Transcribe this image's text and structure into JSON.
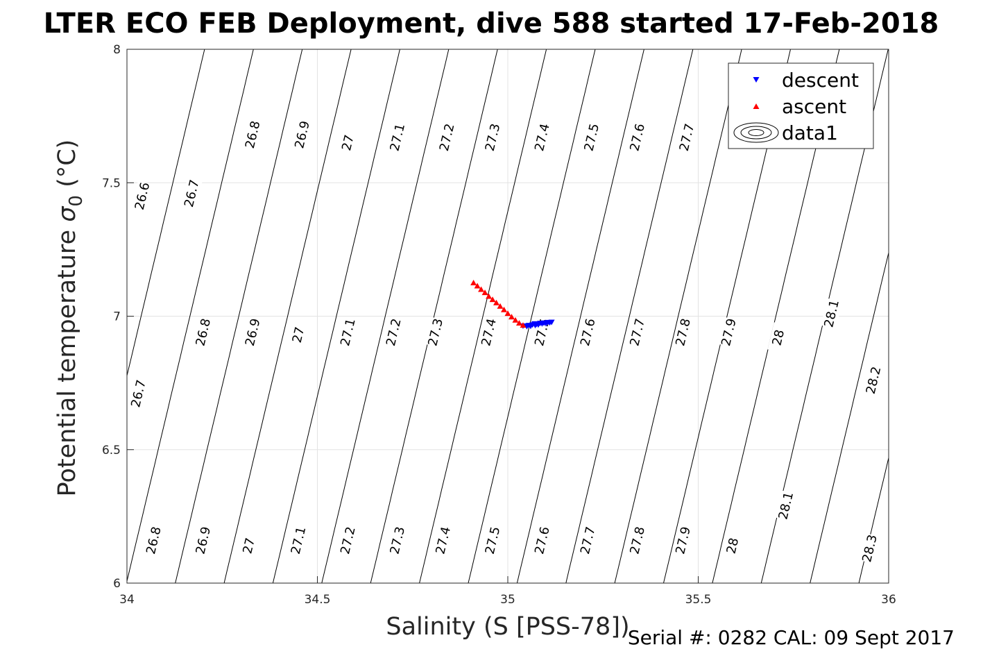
{
  "chart_data": {
    "type": "scatter",
    "title": "LTER ECO FEB Deployment, dive 588 started 17-Feb-2018",
    "xlabel": "Salinity (S [PSS-78])",
    "ylabel_main": "Potential temperature ",
    "ylabel_symbol": "σ",
    "ylabel_sub": "0",
    "ylabel_unit": " (°C)",
    "footer": "Serial #: 0282  CAL: 09 Sept 2017",
    "xlim": [
      34,
      36
    ],
    "ylim": [
      6,
      8
    ],
    "xticks": [
      "34",
      "34.5",
      "35",
      "35.5",
      "36"
    ],
    "yticks": [
      "6",
      "6.5",
      "7",
      "7.5",
      "8"
    ],
    "grid": true,
    "legend_position": "top-right",
    "legend": [
      "descent",
      "ascent",
      "data1"
    ],
    "contour_levels": [
      26.6,
      26.7,
      26.8,
      26.9,
      27.0,
      27.1,
      27.2,
      27.3,
      27.4,
      27.5,
      27.6,
      27.7,
      27.8,
      27.9,
      28.0,
      28.1,
      28.2,
      28.3
    ],
    "contour_labels": [
      {
        "text": "26.6",
        "s": 34.04,
        "t": 7.45
      },
      {
        "text": "26.7",
        "s": 34.17,
        "t": 7.46
      },
      {
        "text": "26.8",
        "s": 34.33,
        "t": 7.68
      },
      {
        "text": "26.9",
        "s": 34.46,
        "t": 7.68
      },
      {
        "text": "27",
        "s": 34.58,
        "t": 7.65
      },
      {
        "text": "27.1",
        "s": 34.71,
        "t": 7.67
      },
      {
        "text": "27.2",
        "s": 34.84,
        "t": 7.67
      },
      {
        "text": "27.3",
        "s": 34.96,
        "t": 7.67
      },
      {
        "text": "27.4",
        "s": 35.09,
        "t": 7.67
      },
      {
        "text": "27.5",
        "s": 35.22,
        "t": 7.67
      },
      {
        "text": "27.6",
        "s": 35.34,
        "t": 7.67
      },
      {
        "text": "27.7",
        "s": 35.47,
        "t": 7.67
      },
      {
        "text": "26.7",
        "s": 34.03,
        "t": 6.71
      },
      {
        "text": "26.8",
        "s": 34.2,
        "t": 6.94
      },
      {
        "text": "26.9",
        "s": 34.33,
        "t": 6.94
      },
      {
        "text": "27",
        "s": 34.45,
        "t": 6.93
      },
      {
        "text": "27.1",
        "s": 34.58,
        "t": 6.94
      },
      {
        "text": "27.2",
        "s": 34.7,
        "t": 6.94
      },
      {
        "text": "27.3",
        "s": 34.81,
        "t": 6.94
      },
      {
        "text": "27.4",
        "s": 34.95,
        "t": 6.94
      },
      {
        "text": "27.5",
        "s": 35.09,
        "t": 6.94
      },
      {
        "text": "27.6",
        "s": 35.21,
        "t": 6.94
      },
      {
        "text": "27.7",
        "s": 35.34,
        "t": 6.94
      },
      {
        "text": "27.8",
        "s": 35.46,
        "t": 6.94
      },
      {
        "text": "27.9",
        "s": 35.58,
        "t": 6.94
      },
      {
        "text": "28",
        "s": 35.71,
        "t": 6.92
      },
      {
        "text": "28.1",
        "s": 35.85,
        "t": 7.01
      },
      {
        "text": "28.2",
        "s": 35.96,
        "t": 6.76
      },
      {
        "text": "26.8",
        "s": 34.07,
        "t": 6.16
      },
      {
        "text": "26.9",
        "s": 34.2,
        "t": 6.16
      },
      {
        "text": "27",
        "s": 34.32,
        "t": 6.14
      },
      {
        "text": "27.1",
        "s": 34.45,
        "t": 6.16
      },
      {
        "text": "27.2",
        "s": 34.58,
        "t": 6.16
      },
      {
        "text": "27.3",
        "s": 34.71,
        "t": 6.16
      },
      {
        "text": "27.4",
        "s": 34.83,
        "t": 6.16
      },
      {
        "text": "27.5",
        "s": 34.96,
        "t": 6.16
      },
      {
        "text": "27.6",
        "s": 35.09,
        "t": 6.16
      },
      {
        "text": "27.7",
        "s": 35.21,
        "t": 6.16
      },
      {
        "text": "27.8",
        "s": 35.34,
        "t": 6.16
      },
      {
        "text": "27.9",
        "s": 35.46,
        "t": 6.16
      },
      {
        "text": "28",
        "s": 35.59,
        "t": 6.14
      },
      {
        "text": "28.1",
        "s": 35.73,
        "t": 6.29
      },
      {
        "text": "28.3",
        "s": 35.95,
        "t": 6.13
      }
    ],
    "series": [
      {
        "name": "descent",
        "color": "#0000ff",
        "marker": "triangle-down",
        "points": [
          [
            35.04,
            6.964
          ],
          [
            35.05,
            6.962
          ],
          [
            35.055,
            6.966
          ],
          [
            35.06,
            6.963
          ],
          [
            35.065,
            6.968
          ],
          [
            35.07,
            6.972
          ],
          [
            35.072,
            6.966
          ],
          [
            35.075,
            6.97
          ],
          [
            35.08,
            6.968
          ],
          [
            35.085,
            6.974
          ],
          [
            35.09,
            6.972
          ],
          [
            35.095,
            6.975
          ],
          [
            35.1,
            6.973
          ],
          [
            35.105,
            6.977
          ],
          [
            35.11,
            6.976
          ],
          [
            35.115,
            6.978
          ]
        ]
      },
      {
        "name": "ascent",
        "color": "#ff0000",
        "marker": "triangle-up",
        "points": [
          [
            34.91,
            7.125
          ],
          [
            34.92,
            7.113
          ],
          [
            34.93,
            7.1
          ],
          [
            34.94,
            7.088
          ],
          [
            34.95,
            7.074
          ],
          [
            34.96,
            7.062
          ],
          [
            34.97,
            7.05
          ],
          [
            34.98,
            7.037
          ],
          [
            34.99,
            7.024
          ],
          [
            35.0,
            7.01
          ],
          [
            35.01,
            6.997
          ],
          [
            35.02,
            6.985
          ],
          [
            35.03,
            6.974
          ],
          [
            35.04,
            6.966
          ]
        ]
      }
    ]
  }
}
